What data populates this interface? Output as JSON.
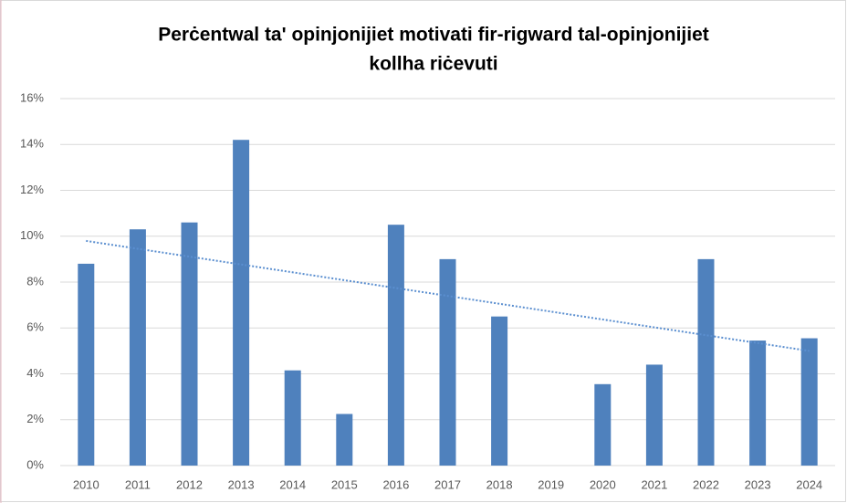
{
  "chart_data": {
    "type": "bar",
    "title": [
      "Perċentwal ta' opinjonijiet motivati fir-rigward tal-opinjonijiet",
      "kollha riċevuti"
    ],
    "categories": [
      "2010",
      "2011",
      "2012",
      "2013",
      "2014",
      "2015",
      "2016",
      "2017",
      "2018",
      "2019",
      "2020",
      "2021",
      "2022",
      "2023",
      "2024"
    ],
    "values": [
      8.8,
      10.3,
      10.6,
      14.2,
      4.15,
      2.25,
      10.5,
      9.0,
      6.5,
      null,
      3.55,
      4.4,
      9.0,
      5.45,
      5.55
    ],
    "color": "#4f81bd",
    "trendline": "linear",
    "trendline_color": "#5b8fd0",
    "ylim": [
      0,
      16
    ],
    "yticks": [
      {
        "value": 0,
        "label": "0%"
      },
      {
        "value": 2,
        "label": "2%"
      },
      {
        "value": 4,
        "label": "4%"
      },
      {
        "value": 6,
        "label": "6%"
      },
      {
        "value": 8,
        "label": "8%"
      },
      {
        "value": 10,
        "label": "10%"
      },
      {
        "value": 12,
        "label": "12%"
      },
      {
        "value": 14,
        "label": "14%"
      },
      {
        "value": 16,
        "label": "16%"
      }
    ],
    "grid": true
  }
}
